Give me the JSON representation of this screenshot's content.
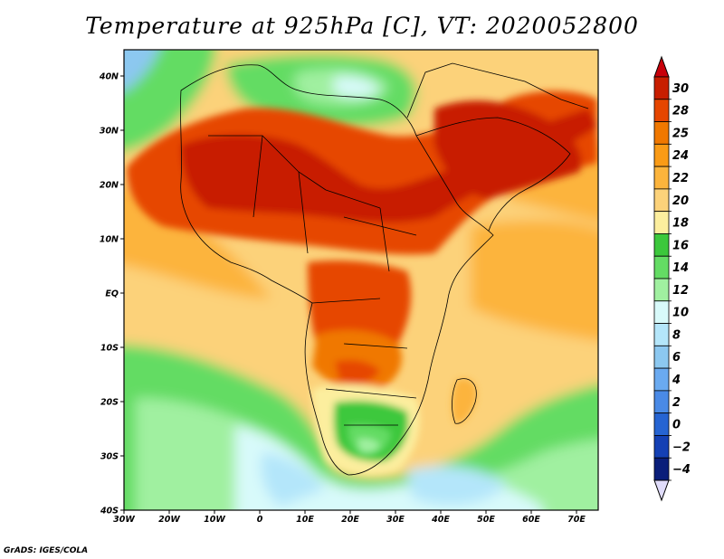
{
  "title": "Temperature at 925hPa [C], VT: 2020052800",
  "credit": "GrADS: IGES/COLA",
  "map": {
    "region": "Africa, Middle East and surrounding ocean",
    "variable": "Temperature at 925hPa",
    "units": "C",
    "valid_time": "2020052800",
    "lon_ticks": [
      "30W",
      "20W",
      "10W",
      "0",
      "10E",
      "20E",
      "30E",
      "40E",
      "50E",
      "60E",
      "70E"
    ],
    "lat_ticks": [
      "40N",
      "30N",
      "20N",
      "10N",
      "EQ",
      "10S",
      "20S",
      "30S",
      "40S"
    ]
  },
  "colorbar": {
    "labels": [
      "30",
      "28",
      "25",
      "24",
      "22",
      "20",
      "18",
      "16",
      "14",
      "12",
      "10",
      "8",
      "6",
      "4",
      "2",
      "0",
      "−2",
      "−4"
    ],
    "colors": [
      "#c81e00",
      "#e64600",
      "#f07800",
      "#fa9b16",
      "#fcb43c",
      "#fcd27a",
      "#fcee9e",
      "#3cc83c",
      "#64dc64",
      "#a0f0a0",
      "#d8fafa",
      "#b4e6fa",
      "#8cc8f0",
      "#6aaaf0",
      "#4a8ae6",
      "#2664d2",
      "#1440b4",
      "#0a1e7a"
    ],
    "top_arrow_color": "#c8000a",
    "bottom_arrow_color": "#e0dcfa"
  }
}
